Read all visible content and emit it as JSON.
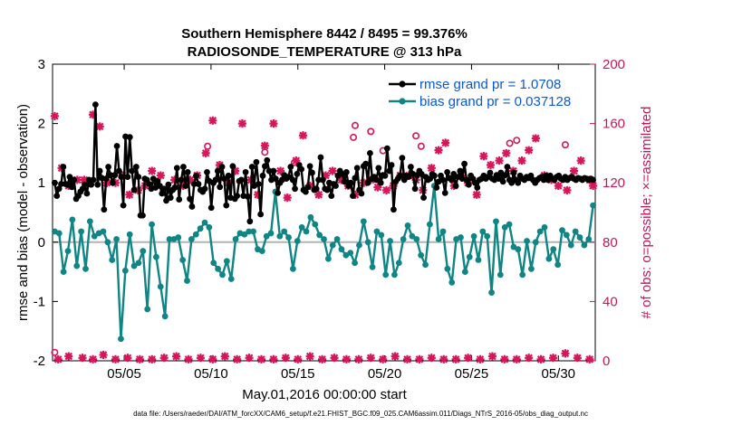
{
  "chart_data": {
    "type": "line",
    "title": "Southern Hemisphere 8442 / 8495 = 99.376%",
    "subtitle": "RADIOSONDE_TEMPERATURE @ 313 hPa",
    "xlabel": "May.01,2016 00:00:00 start",
    "ylabel": "rmse and bias (model - observation)",
    "ylabel_right": "# of obs: o=possible; ×=assimilated",
    "footnote": "data file: /Users/raeder/DAI/ATM_forcXX/CAM6_setup/f.e21.FHIST_BGC.f09_025.CAM6assim.011/Diags_NTrS_2016-05/obs_diag_output.nc",
    "xlim": [
      0.875,
      32.125
    ],
    "ylim": [
      -2,
      3
    ],
    "ylim_right": [
      0,
      200
    ],
    "x_ticks": [
      5,
      10,
      15,
      20,
      25,
      30
    ],
    "x_tick_labels": [
      "05/05",
      "05/10",
      "05/15",
      "05/20",
      "05/25",
      "05/30"
    ],
    "y_ticks": [
      -2,
      -1,
      0,
      1,
      2,
      3
    ],
    "y_tick_labels": [
      "-2",
      "-1",
      "0",
      "1",
      "2",
      "3"
    ],
    "y_ticks_right": [
      0,
      40,
      80,
      120,
      160,
      200
    ],
    "y_tick_labels_right": [
      "0",
      "40",
      "80",
      "120",
      "160",
      "200"
    ],
    "legend_position": "top-right",
    "colors": {
      "rmse": "#000000",
      "bias": "#0f8585",
      "obs": "#d6155a",
      "zero": "#b4b4b4",
      "legend_text": "#0a58d6",
      "right_axis": "#c2185b"
    },
    "series": [
      {
        "name": "rmse grand pr = 1.0708",
        "values": [
          1.0,
          0.78,
          0.9,
          0.98,
          1.27,
          0.98,
          0.97,
          1.1,
          0.93,
          1.05,
          0.73,
          0.78,
          0.85,
          0.9,
          0.97,
          0.82,
          1.05,
          0.97,
          1.05,
          2.32,
          0.97,
          1.2,
          1.08,
          0.55,
          1.07,
          1.27,
          1.13,
          1.0,
          1.13,
          1.62,
          1.2,
          1.1,
          0.62,
          1.78,
          1.1,
          1.77,
          1.2,
          0.88,
          1.27,
          1.1,
          0.45,
          0.45,
          1.07,
          1.05,
          0.98,
          0.9,
          1.07,
          0.92,
          1.03,
          0.95,
          0.82,
          0.9,
          0.7,
          0.97,
          0.75,
          0.88,
          0.92,
          1.25,
          0.72,
          1.05,
          1.27,
          0.95,
          1.18,
          0.73,
          0.6,
          0.98,
          1.12,
          0.98,
          0.88,
          0.85,
          0.9,
          1.18,
          1.03,
          0.58,
          1.0,
          1.05,
          1.2,
          0.93,
          1.27,
          1.07,
          0.62,
          1.12,
          0.75,
          1.28,
          0.73,
          0.78,
          1.03,
          1.05,
          0.78,
          1.18,
          0.77,
          0.35,
          1.27,
          0.95,
          1.35,
          0.98,
          0.47,
          1.12,
          1.28,
          1.38,
          1.2,
          1.05,
          1.2,
          1.07,
          0.83,
          1.0,
          1.05,
          1.13,
          1.07,
          1.1,
          1.27,
          1.05,
          0.9,
          1.15,
          1.3,
          1.23,
          0.88,
          0.85,
          0.93,
          1.28,
          1.17,
          0.88,
          0.9,
          1.05,
          1.43,
          1.05,
          0.9,
          0.88,
          1.0,
          0.78,
          0.98,
          0.95,
          1.12,
          1.2,
          1.15,
          1.02,
          1.18,
          0.95,
          1.0,
          0.78,
          1.08,
          1.25,
          0.88,
          0.82,
          1.28,
          1.32,
          1.0,
          1.5,
          1.07,
          1.1,
          1.05,
          1.25,
          1.0,
          1.13,
          1.12,
          1.58,
          1.2,
          1.3,
          0.55,
          1.02,
          1.07,
          1.12,
          1.42,
          1.05,
          1.12,
          1.1,
          1.27,
          1.15,
          0.9,
          1.13,
          1.2,
          1.15,
          0.75,
          1.1,
          1.05,
          1.07,
          1.15,
          1.12,
          0.92,
          1.02,
          1.12,
          1.05,
          0.83,
          1.18,
          1.08,
          1.05,
          1.15,
          0.95,
          1.1,
          1.2,
          1.07,
          1.32,
          1.05,
          0.97,
          1.12,
          1.07,
          1.0,
          0.92,
          1.05,
          1.07,
          1.12,
          1.07,
          1.1,
          1.17,
          1.07,
          1.05,
          1.13,
          1.07,
          1.17,
          1.02,
          1.13,
          1.27,
          1.05,
          1.0,
          1.17,
          1.05,
          1.0,
          1.12,
          1.07,
          1.05,
          1.1,
          1.08,
          1.12,
          1.05,
          1.0,
          1.05,
          1.08,
          1.1,
          1.05,
          1.12,
          1.05,
          1.12,
          1.07,
          1.05,
          1.1,
          1.12,
          1.07,
          1.05,
          1.1,
          1.05,
          1.08,
          1.1,
          1.07,
          1.05,
          1.08,
          1.07,
          1.05,
          1.08,
          1.07,
          1.05,
          1.07,
          1.05
        ]
      },
      {
        "name": "bias grand pr = 0.037128",
        "values": [
          0.18,
          0.15,
          -0.5,
          -0.15,
          0.38,
          -0.4,
          0.18,
          -0.45,
          0.35,
          0.1,
          0.15,
          0.18,
          0.0,
          -0.3,
          0.05,
          -1.63,
          -0.48,
          0.13,
          -0.4,
          -0.35,
          -0.15,
          -1.13,
          0.3,
          -0.25,
          -0.75,
          -1.25,
          0.05,
          0.05,
          0.08,
          -0.3,
          -0.65,
          0.05,
          0.13,
          0.23,
          0.33,
          0.25,
          -0.35,
          -0.45,
          -0.55,
          -0.32,
          -0.62,
          0.05,
          0.15,
          0.13,
          0.18,
          0.18,
          -0.12,
          -0.15,
          0.1,
          0.15,
          0.85,
          0.1,
          0.18,
          0.08,
          -0.45,
          0.02,
          0.25,
          0.18,
          0.42,
          0.3,
          0.12,
          0.05,
          -0.28,
          -0.05,
          0.05,
          -0.12,
          -0.22,
          -0.18,
          -0.35,
          -0.05,
          0.35,
          0.0,
          -0.42,
          0.18,
          0.12,
          -0.55,
          0.02,
          -0.55,
          -0.35,
          0.05,
          0.28,
          0.1,
          0.05,
          -0.22,
          -0.38,
          0.3,
          0.95,
          0.05,
          0.18,
          -0.45,
          -0.68,
          0.05,
          0.08,
          -0.5,
          -0.25,
          0.1,
          -0.3,
          0.18,
          0.1,
          -0.85,
          0.35,
          -0.55,
          0.25,
          0.3,
          -0.08,
          -0.12,
          -0.55,
          0.02,
          -0.45,
          0.0,
          0.18,
          0.25,
          -0.28,
          -0.12,
          -0.38,
          0.2,
          0.12,
          -0.05,
          0.18,
          0.08,
          -0.05,
          0.05,
          0.62
        ]
      }
    ],
    "obs_possible": {
      "x": [
        1,
        9.8,
        13.1,
        14.8,
        18.2,
        18.3,
        19.2,
        19.9,
        21.8,
        22.1,
        27.2,
        27.6,
        30.4
      ],
      "values": [
        2,
        141,
        137,
        130,
        147,
        155,
        151,
        138,
        148,
        141,
        143,
        145,
        142
      ]
    },
    "obs_assimilated": {
      "x": [
        1.0,
        1.4,
        1.8,
        2.3,
        2.7,
        3.2,
        3.6,
        4.0,
        4.5,
        4.9,
        5.3,
        5.8,
        6.2,
        6.6,
        7.1,
        7.5,
        7.9,
        8.4,
        8.8,
        9.2,
        9.7,
        10.1,
        10.5,
        11.0,
        11.4,
        11.8,
        12.3,
        12.7,
        13.1,
        13.6,
        14.0,
        14.4,
        14.9,
        15.3,
        15.7,
        16.2,
        16.6,
        17.0,
        17.5,
        17.9,
        18.3,
        18.8,
        19.2,
        19.6,
        20.1,
        20.5,
        20.9,
        21.4,
        21.8,
        22.2,
        22.7,
        23.1,
        23.5,
        24.0,
        24.4,
        24.8,
        25.3,
        25.7,
        26.1,
        26.6,
        27.0,
        27.4,
        27.9,
        28.3,
        28.7,
        29.2,
        29.6,
        30.0,
        30.5,
        30.9,
        31.3,
        31.8,
        32.0
      ],
      "values": [
        165,
        130,
        118,
        122,
        122,
        166,
        158,
        120,
        120,
        125,
        112,
        115,
        118,
        128,
        125,
        115,
        122,
        118,
        122,
        125,
        140,
        162,
        132,
        120,
        128,
        160,
        122,
        112,
        145,
        160,
        128,
        110,
        135,
        152,
        118,
        112,
        125,
        128,
        122,
        118,
        112,
        120,
        122,
        117,
        115,
        118,
        125,
        125,
        122,
        115,
        130,
        142,
        147,
        118,
        125,
        120,
        112,
        138,
        132,
        135,
        140,
        128,
        135,
        142,
        150,
        125,
        122,
        118,
        115,
        128,
        135,
        122,
        118
      ]
    },
    "obs_assimilated_low": {
      "x": [
        1.2,
        1.8,
        2.6,
        3.2,
        3.8,
        4.5,
        5.2,
        5.9,
        6.6,
        7.3,
        8.0,
        8.7,
        9.4,
        10.1,
        10.8,
        11.5,
        12.2,
        12.9,
        13.6,
        14.3,
        15.0,
        15.7,
        16.4,
        17.1,
        17.8,
        18.5,
        19.2,
        19.9,
        20.6,
        21.3,
        22.0,
        22.7,
        23.4,
        24.1,
        24.8,
        25.5,
        26.2,
        26.9,
        27.6,
        28.3,
        29.0,
        29.7,
        30.4,
        31.1,
        31.8
      ],
      "values": [
        1,
        3,
        2,
        1,
        4,
        1,
        2,
        1,
        1,
        2,
        3,
        1,
        2,
        1,
        3,
        1,
        2,
        1,
        1,
        2,
        1,
        3,
        1,
        2,
        1,
        1,
        2,
        1,
        3,
        1,
        1,
        2,
        1,
        1,
        2,
        1,
        3,
        1,
        1,
        2,
        1,
        2,
        5,
        2,
        1
      ]
    }
  }
}
